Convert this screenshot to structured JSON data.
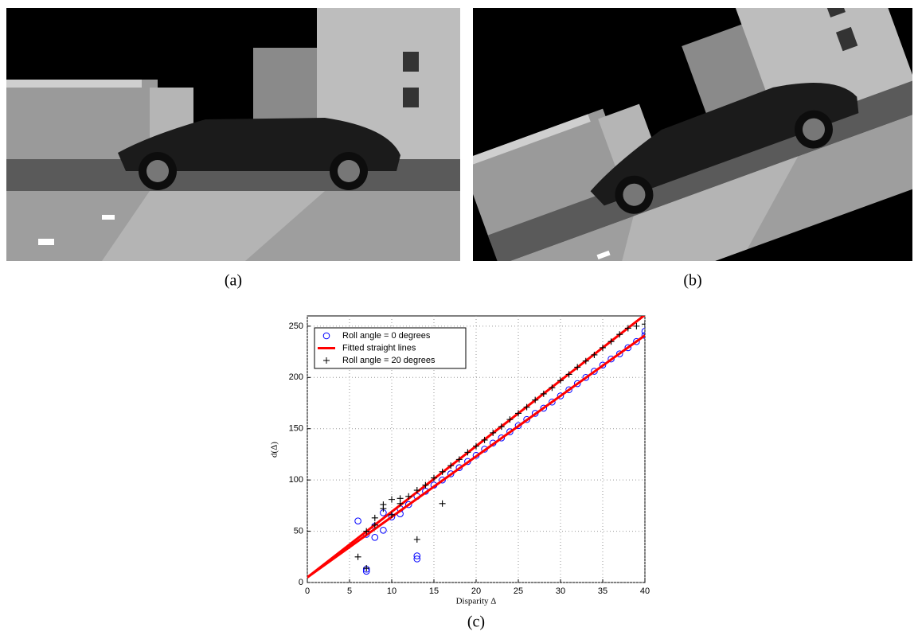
{
  "panels": [
    {
      "label": "(a)"
    },
    {
      "label": "(b)"
    },
    {
      "label": "(c)"
    }
  ],
  "chart_data": {
    "type": "scatter",
    "x_label": "Disparity Δ",
    "y_label": "d(Δ)",
    "xlim": [
      0,
      40
    ],
    "ylim": [
      0,
      260
    ],
    "xticks": [
      0,
      5,
      10,
      15,
      20,
      25,
      30,
      35,
      40
    ],
    "yticks": [
      0,
      50,
      100,
      150,
      200,
      250
    ],
    "grid": true,
    "legend": "upper left",
    "series": [
      {
        "name": "Roll angle = 0 degrees",
        "color": "#0000ff",
        "marker": "o",
        "x": [
          6,
          7,
          7,
          7,
          8,
          8,
          9,
          9,
          10,
          11,
          11,
          12,
          13,
          13,
          13,
          14,
          15,
          16,
          17,
          18,
          19,
          20,
          21,
          22,
          23,
          24,
          25,
          26,
          27,
          28,
          29,
          30,
          31,
          32,
          33,
          34,
          35,
          36,
          37,
          38,
          39,
          40,
          40
        ],
        "values": [
          60,
          47,
          13,
          11,
          44,
          55,
          51,
          68,
          64,
          67,
          72,
          76,
          84,
          26,
          23,
          89,
          95,
          100,
          106,
          112,
          118,
          124,
          130,
          136,
          141,
          147,
          153,
          159,
          165,
          170,
          176,
          182,
          188,
          194,
          200,
          206,
          212,
          218,
          223,
          229,
          235,
          241,
          245
        ]
      },
      {
        "name": "Fitted straight lines",
        "color": "#ff0000",
        "marker": "line",
        "lines": [
          {
            "x": [
              0,
              40
            ],
            "values": [
              5,
              241
            ]
          },
          {
            "x": [
              0,
              40
            ],
            "values": [
              5,
              261
            ]
          }
        ]
      },
      {
        "name": "Roll angle = 20 degrees",
        "color": "#000000",
        "marker": "+",
        "x": [
          6,
          7,
          7,
          8,
          8,
          9,
          9,
          10,
          10,
          11,
          11,
          12,
          13,
          13,
          14,
          15,
          16,
          16,
          17,
          18,
          19,
          20,
          21,
          22,
          23,
          24,
          25,
          26,
          27,
          28,
          29,
          30,
          31,
          32,
          33,
          34,
          35,
          36,
          37,
          38,
          39,
          40
        ],
        "values": [
          25,
          50,
          14,
          63,
          56,
          76,
          72,
          81,
          66,
          82,
          77,
          84,
          90,
          42,
          95,
          102,
          108,
          77,
          114,
          120,
          127,
          133,
          139,
          146,
          152,
          159,
          165,
          171,
          178,
          184,
          190,
          197,
          203,
          210,
          216,
          222,
          229,
          235,
          242,
          248,
          250,
          252
        ]
      }
    ]
  }
}
